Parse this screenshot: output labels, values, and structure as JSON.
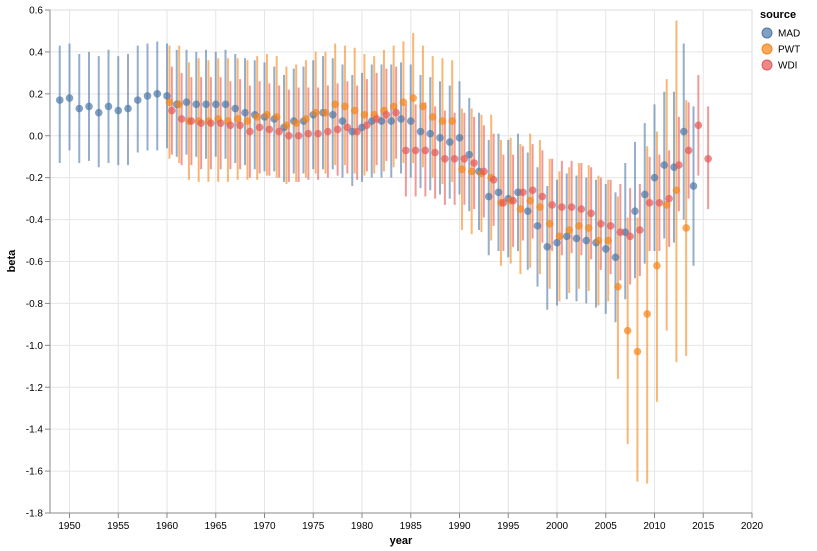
{
  "chart_data": {
    "type": "scatter",
    "subtype": "point-with-error-bars",
    "xlabel": "year",
    "ylabel": "beta",
    "xlim": [
      1948,
      2020
    ],
    "ylim": [
      -1.8,
      0.6
    ],
    "x_ticks": [
      "1950",
      "1955",
      "1960",
      "1965",
      "1970",
      "1975",
      "1980",
      "1985",
      "1990",
      "1995",
      "2000",
      "2005",
      "2010",
      "2015",
      "2020"
    ],
    "y_ticks": [
      "0.6",
      "0.4",
      "0.2",
      "0.0",
      "-0.2",
      "-0.4",
      "-0.6",
      "-0.8",
      "-1.0",
      "-1.2",
      "-1.4",
      "-1.6",
      "-1.8"
    ],
    "grid": true,
    "legend": {
      "title": "source",
      "position": "top-right"
    },
    "series": [
      {
        "name": "MAD",
        "color": "#4c78a8",
        "points": [
          [
            1949,
            0.17,
            -0.13,
            0.43
          ],
          [
            1950,
            0.18,
            -0.07,
            0.44
          ],
          [
            1951,
            0.13,
            -0.13,
            0.39
          ],
          [
            1952,
            0.14,
            -0.12,
            0.4
          ],
          [
            1953,
            0.11,
            -0.15,
            0.38
          ],
          [
            1954,
            0.14,
            -0.13,
            0.41
          ],
          [
            1955,
            0.12,
            -0.14,
            0.38
          ],
          [
            1956,
            0.13,
            -0.14,
            0.39
          ],
          [
            1957,
            0.17,
            -0.08,
            0.43
          ],
          [
            1958,
            0.19,
            -0.07,
            0.44
          ],
          [
            1959,
            0.2,
            -0.07,
            0.45
          ],
          [
            1960,
            0.19,
            -0.06,
            0.44
          ],
          [
            1961,
            0.15,
            -0.1,
            0.41
          ],
          [
            1962,
            0.16,
            -0.09,
            0.41
          ],
          [
            1963,
            0.15,
            -0.1,
            0.4
          ],
          [
            1964,
            0.15,
            -0.11,
            0.41
          ],
          [
            1965,
            0.15,
            -0.1,
            0.4
          ],
          [
            1966,
            0.15,
            -0.11,
            0.41
          ],
          [
            1967,
            0.13,
            -0.13,
            0.39
          ],
          [
            1968,
            0.11,
            -0.14,
            0.37
          ],
          [
            1969,
            0.1,
            -0.16,
            0.36
          ],
          [
            1970,
            0.09,
            -0.17,
            0.35
          ],
          [
            1971,
            0.08,
            -0.17,
            0.33
          ],
          [
            1972,
            0.04,
            -0.22,
            0.29
          ],
          [
            1973,
            0.07,
            -0.18,
            0.32
          ],
          [
            1974,
            0.07,
            -0.18,
            0.33
          ],
          [
            1975,
            0.1,
            -0.16,
            0.36
          ],
          [
            1976,
            0.11,
            -0.16,
            0.38
          ],
          [
            1977,
            0.1,
            -0.16,
            0.37
          ],
          [
            1978,
            0.07,
            -0.2,
            0.34
          ],
          [
            1979,
            0.02,
            -0.24,
            0.29
          ],
          [
            1980,
            0.04,
            -0.22,
            0.3
          ],
          [
            1981,
            0.07,
            -0.2,
            0.34
          ],
          [
            1982,
            0.07,
            -0.2,
            0.34
          ],
          [
            1983,
            0.07,
            -0.2,
            0.34
          ],
          [
            1984,
            0.08,
            -0.18,
            0.35
          ],
          [
            1985,
            0.07,
            -0.2,
            0.34
          ],
          [
            1986,
            0.02,
            -0.25,
            0.29
          ],
          [
            1987,
            0.01,
            -0.26,
            0.28
          ],
          [
            1988,
            -0.01,
            -0.28,
            0.26
          ],
          [
            1989,
            -0.03,
            -0.3,
            0.24
          ],
          [
            1990,
            -0.01,
            -0.28,
            0.26
          ],
          [
            1991,
            -0.09,
            -0.36,
            0.18
          ],
          [
            1992,
            -0.17,
            -0.45,
            0.11
          ],
          [
            1993,
            -0.29,
            -0.57,
            -0.02
          ],
          [
            1994,
            -0.27,
            -0.55,
            0.01
          ],
          [
            1995,
            -0.3,
            -0.58,
            -0.02
          ],
          [
            1996,
            -0.27,
            -0.55,
            0.01
          ],
          [
            1997,
            -0.36,
            -0.64,
            -0.08
          ],
          [
            1998,
            -0.43,
            -0.72,
            -0.15
          ],
          [
            1999,
            -0.53,
            -0.83,
            -0.24
          ],
          [
            2000,
            -0.51,
            -0.81,
            -0.21
          ],
          [
            2001,
            -0.48,
            -0.78,
            -0.18
          ],
          [
            2002,
            -0.49,
            -0.79,
            -0.19
          ],
          [
            2003,
            -0.5,
            -0.8,
            -0.2
          ],
          [
            2004,
            -0.51,
            -0.82,
            -0.21
          ],
          [
            2005,
            -0.54,
            -0.85,
            -0.23
          ],
          [
            2006,
            -0.58,
            -0.89,
            -0.27
          ],
          [
            2007,
            -0.46,
            -0.78,
            -0.13
          ],
          [
            2008,
            -0.36,
            -0.68,
            -0.03
          ],
          [
            2009,
            -0.28,
            -0.61,
            0.06
          ],
          [
            2010,
            -0.2,
            -0.55,
            0.15
          ],
          [
            2011,
            -0.14,
            -0.49,
            0.21
          ],
          [
            2012,
            -0.15,
            -0.51,
            0.21
          ],
          [
            2013,
            0.02,
            -0.4,
            0.44
          ],
          [
            2014,
            -0.24,
            -0.62,
            0.14
          ]
        ]
      },
      {
        "name": "PWT",
        "color": "#f58518",
        "points": [
          [
            1960,
            0.16,
            -0.11,
            0.43
          ],
          [
            1961,
            0.15,
            -0.13,
            0.43
          ],
          [
            1962,
            0.07,
            -0.21,
            0.35
          ],
          [
            1963,
            0.07,
            -0.22,
            0.37
          ],
          [
            1964,
            0.07,
            -0.22,
            0.36
          ],
          [
            1965,
            0.08,
            -0.22,
            0.37
          ],
          [
            1966,
            0.07,
            -0.22,
            0.37
          ],
          [
            1967,
            0.08,
            -0.21,
            0.37
          ],
          [
            1968,
            0.07,
            -0.21,
            0.36
          ],
          [
            1969,
            0.09,
            -0.21,
            0.38
          ],
          [
            1970,
            0.1,
            -0.19,
            0.39
          ],
          [
            1971,
            0.09,
            -0.2,
            0.38
          ],
          [
            1972,
            0.05,
            -0.23,
            0.33
          ],
          [
            1973,
            0.06,
            -0.22,
            0.34
          ],
          [
            1974,
            0.08,
            -0.2,
            0.36
          ],
          [
            1975,
            0.11,
            -0.18,
            0.4
          ],
          [
            1976,
            0.11,
            -0.18,
            0.4
          ],
          [
            1977,
            0.15,
            -0.14,
            0.44
          ],
          [
            1978,
            0.14,
            -0.14,
            0.43
          ],
          [
            1979,
            0.12,
            -0.18,
            0.42
          ],
          [
            1980,
            0.1,
            -0.19,
            0.39
          ],
          [
            1981,
            0.1,
            -0.18,
            0.38
          ],
          [
            1982,
            0.12,
            -0.17,
            0.41
          ],
          [
            1983,
            0.14,
            -0.15,
            0.43
          ],
          [
            1984,
            0.16,
            -0.13,
            0.45
          ],
          [
            1985,
            0.18,
            -0.13,
            0.49
          ],
          [
            1986,
            0.14,
            -0.15,
            0.43
          ],
          [
            1987,
            0.09,
            -0.2,
            0.38
          ],
          [
            1988,
            0.07,
            -0.23,
            0.37
          ],
          [
            1989,
            0.07,
            -0.22,
            0.36
          ],
          [
            1990,
            -0.16,
            -0.45,
            0.13
          ],
          [
            1991,
            -0.17,
            -0.47,
            0.13
          ],
          [
            1992,
            -0.18,
            -0.46,
            0.1
          ],
          [
            1993,
            -0.2,
            -0.5,
            0.1
          ],
          [
            1994,
            -0.32,
            -0.62,
            -0.02
          ],
          [
            1995,
            -0.31,
            -0.61,
            -0.01
          ],
          [
            1996,
            -0.35,
            -0.66,
            -0.04
          ],
          [
            1997,
            -0.31,
            -0.63,
            0.01
          ],
          [
            1998,
            -0.34,
            -0.66,
            -0.02
          ],
          [
            1999,
            -0.42,
            -0.73,
            -0.11
          ],
          [
            2000,
            -0.48,
            -0.79,
            -0.17
          ],
          [
            2001,
            -0.45,
            -0.75,
            -0.15
          ],
          [
            2002,
            -0.43,
            -0.73,
            -0.13
          ],
          [
            2003,
            -0.44,
            -0.74,
            -0.14
          ],
          [
            2004,
            -0.5,
            -0.81,
            -0.19
          ],
          [
            2005,
            -0.5,
            -0.79,
            -0.21
          ],
          [
            2006,
            -0.72,
            -1.16,
            -0.29
          ],
          [
            2007,
            -0.93,
            -1.47,
            -0.39
          ],
          [
            2008,
            -1.03,
            -1.65,
            -0.39
          ],
          [
            2009,
            -0.85,
            -1.66,
            -0.05
          ],
          [
            2010,
            -0.62,
            -1.27,
            0.02
          ],
          [
            2011,
            -0.33,
            -0.93,
            0.27
          ],
          [
            2012,
            -0.26,
            -1.08,
            0.55
          ],
          [
            2013,
            -0.44,
            -1.05,
            0.17
          ]
        ]
      },
      {
        "name": "WDI",
        "color": "#e45756",
        "points": [
          [
            1960,
            0.12,
            -0.09,
            0.33
          ],
          [
            1961,
            0.08,
            -0.14,
            0.3
          ],
          [
            1962,
            0.07,
            -0.14,
            0.28
          ],
          [
            1963,
            0.06,
            -0.16,
            0.28
          ],
          [
            1964,
            0.06,
            -0.16,
            0.28
          ],
          [
            1965,
            0.06,
            -0.16,
            0.28
          ],
          [
            1966,
            0.05,
            -0.16,
            0.26
          ],
          [
            1967,
            0.05,
            -0.16,
            0.27
          ],
          [
            1968,
            0.02,
            -0.2,
            0.24
          ],
          [
            1969,
            0.04,
            -0.18,
            0.26
          ],
          [
            1970,
            0.03,
            -0.19,
            0.25
          ],
          [
            1971,
            0.02,
            -0.2,
            0.24
          ],
          [
            1972,
            0.0,
            -0.22,
            0.22
          ],
          [
            1973,
            0.0,
            -0.22,
            0.23
          ],
          [
            1974,
            0.01,
            -0.21,
            0.23
          ],
          [
            1975,
            0.01,
            -0.21,
            0.23
          ],
          [
            1976,
            0.02,
            -0.2,
            0.24
          ],
          [
            1977,
            0.03,
            -0.19,
            0.25
          ],
          [
            1978,
            0.04,
            -0.18,
            0.26
          ],
          [
            1979,
            0.02,
            -0.21,
            0.24
          ],
          [
            1980,
            0.05,
            -0.17,
            0.27
          ],
          [
            1981,
            0.08,
            -0.14,
            0.3
          ],
          [
            1982,
            0.1,
            -0.12,
            0.32
          ],
          [
            1983,
            0.11,
            -0.11,
            0.33
          ],
          [
            1984,
            -0.07,
            -0.29,
            0.15
          ],
          [
            1985,
            -0.07,
            -0.29,
            0.15
          ],
          [
            1986,
            -0.07,
            -0.29,
            0.16
          ],
          [
            1987,
            -0.08,
            -0.3,
            0.14
          ],
          [
            1988,
            -0.11,
            -0.33,
            0.12
          ],
          [
            1989,
            -0.11,
            -0.33,
            0.11
          ],
          [
            1990,
            -0.11,
            -0.33,
            0.11
          ],
          [
            1991,
            -0.13,
            -0.35,
            0.09
          ],
          [
            1992,
            -0.17,
            -0.39,
            0.05
          ],
          [
            1993,
            -0.21,
            -0.43,
            0.01
          ],
          [
            1994,
            -0.32,
            -0.55,
            -0.09
          ],
          [
            1995,
            -0.31,
            -0.53,
            -0.09
          ],
          [
            1996,
            -0.27,
            -0.5,
            -0.05
          ],
          [
            1997,
            -0.26,
            -0.49,
            -0.04
          ],
          [
            1998,
            -0.29,
            -0.51,
            -0.07
          ],
          [
            1999,
            -0.33,
            -0.55,
            -0.11
          ],
          [
            2000,
            -0.34,
            -0.57,
            -0.12
          ],
          [
            2001,
            -0.34,
            -0.56,
            -0.12
          ],
          [
            2002,
            -0.35,
            -0.57,
            -0.13
          ],
          [
            2003,
            -0.37,
            -0.59,
            -0.15
          ],
          [
            2004,
            -0.42,
            -0.64,
            -0.2
          ],
          [
            2005,
            -0.43,
            -0.66,
            -0.21
          ],
          [
            2006,
            -0.46,
            -0.69,
            -0.23
          ],
          [
            2007,
            -0.48,
            -0.71,
            -0.25
          ],
          [
            2008,
            -0.45,
            -0.67,
            -0.23
          ],
          [
            2009,
            -0.32,
            -0.55,
            -0.1
          ],
          [
            2010,
            -0.32,
            -0.55,
            -0.09
          ],
          [
            2011,
            -0.3,
            -0.53,
            -0.07
          ],
          [
            2012,
            -0.14,
            -0.36,
            0.09
          ],
          [
            2013,
            -0.07,
            -0.3,
            0.16
          ],
          [
            2014,
            0.05,
            -0.19,
            0.29
          ],
          [
            2015,
            -0.11,
            -0.35,
            0.14
          ]
        ]
      }
    ]
  }
}
